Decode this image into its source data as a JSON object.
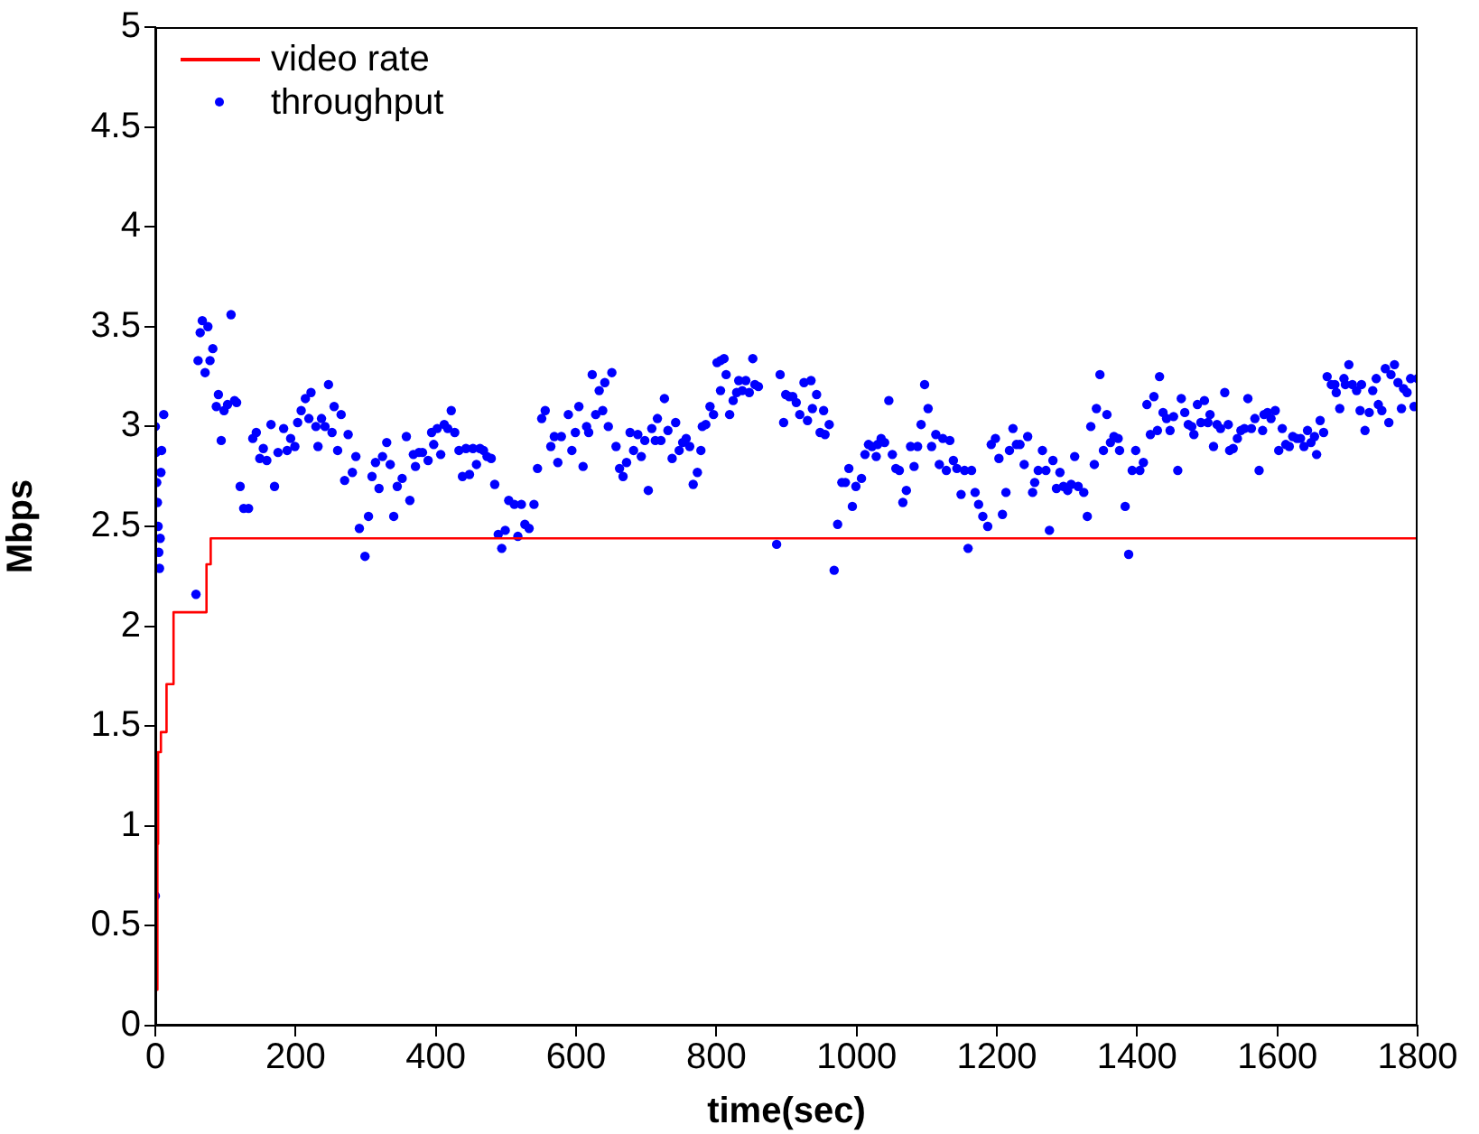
{
  "chart_data": {
    "type": "line",
    "xlabel": "time(sec)",
    "ylabel": "Mbps",
    "xlim": [
      0,
      1800
    ],
    "xticks": [
      0,
      200,
      400,
      600,
      800,
      1000,
      1200,
      1400,
      1600,
      1800
    ],
    "ylim": [
      0,
      5
    ],
    "yticks": [
      0,
      0.5,
      1,
      1.5,
      2,
      2.5,
      3,
      3.5,
      4,
      4.5,
      5
    ],
    "grid": false,
    "legend": "top left",
    "series": [
      {
        "name": "video rate",
        "type": "step",
        "color": "#ff0000",
        "marker": "none",
        "x": [
          2,
          3,
          4,
          8,
          16,
          26,
          73,
          79,
          1800
        ],
        "values": [
          0.18,
          0.91,
          1.37,
          1.47,
          1.71,
          2.07,
          2.31,
          2.44,
          2.44
        ]
      },
      {
        "name": "throughput",
        "type": "scatter",
        "color": "#0000ff",
        "marker": "circle",
        "x": [
          0,
          0,
          1,
          2,
          3,
          4,
          5,
          6,
          7,
          8,
          9,
          12,
          58,
          61,
          64,
          67,
          71,
          75,
          78,
          82,
          87,
          90,
          94,
          98,
          103,
          108,
          113,
          116,
          121,
          126,
          133,
          139,
          144,
          149,
          154,
          159,
          165,
          170,
          175,
          183,
          188,
          193,
          199,
          203,
          208,
          214,
          219,
          222,
          229,
          232,
          237,
          242,
          247,
          252,
          255,
          260,
          265,
          270,
          275,
          281,
          286,
          291,
          299,
          304,
          309,
          314,
          319,
          324,
          330,
          335,
          340,
          345,
          352,
          358,
          363,
          368,
          371,
          376,
          381,
          389,
          394,
          397,
          402,
          407,
          412,
          417,
          422,
          427,
          433,
          438,
          443,
          448,
          453,
          458,
          463,
          468,
          473,
          479,
          484,
          489,
          494,
          499,
          504,
          512,
          517,
          522,
          527,
          533,
          540,
          545,
          551,
          556,
          564,
          569,
          574,
          579,
          589,
          594,
          599,
          604,
          610,
          615,
          618,
          623,
          628,
          633,
          638,
          641,
          646,
          651,
          657,
          662,
          667,
          672,
          677,
          682,
          688,
          693,
          698,
          703,
          708,
          713,
          716,
          721,
          726,
          731,
          737,
          742,
          747,
          752,
          757,
          762,
          767,
          773,
          778,
          780,
          785,
          791,
          796,
          801,
          806,
          806,
          811,
          814,
          819,
          824,
          829,
          832,
          837,
          842,
          847,
          852,
          855,
          860,
          886,
          891,
          896,
          899,
          904,
          909,
          914,
          919,
          925,
          930,
          935,
          937,
          943,
          948,
          953,
          955,
          961,
          968,
          973,
          979,
          984,
          989,
          994,
          999,
          1007,
          1012,
          1017,
          1022,
          1028,
          1030,
          1035,
          1040,
          1046,
          1051,
          1056,
          1061,
          1066,
          1071,
          1077,
          1082,
          1087,
          1092,
          1097,
          1102,
          1107,
          1113,
          1118,
          1123,
          1128,
          1133,
          1138,
          1143,
          1149,
          1154,
          1159,
          1164,
          1169,
          1174,
          1180,
          1187,
          1192,
          1198,
          1203,
          1208,
          1213,
          1218,
          1223,
          1228,
          1233,
          1239,
          1244,
          1251,
          1254,
          1259,
          1265,
          1270,
          1275,
          1280,
          1285,
          1290,
          1295,
          1301,
          1306,
          1311,
          1316,
          1324,
          1329,
          1334,
          1339,
          1342,
          1347,
          1352,
          1357,
          1362,
          1367,
          1373,
          1375,
          1383,
          1388,
          1393,
          1398,
          1404,
          1409,
          1414,
          1419,
          1424,
          1429,
          1432,
          1437,
          1442,
          1447,
          1452,
          1458,
          1463,
          1468,
          1473,
          1478,
          1481,
          1486,
          1491,
          1496,
          1501,
          1504,
          1509,
          1514,
          1519,
          1525,
          1530,
          1532,
          1537,
          1543,
          1548,
          1553,
          1558,
          1563,
          1568,
          1574,
          1579,
          1581,
          1586,
          1591,
          1597,
          1602,
          1607,
          1612,
          1617,
          1622,
          1628,
          1633,
          1638,
          1643,
          1648,
          1653,
          1656,
          1661,
          1666,
          1671,
          1677,
          1682,
          1684,
          1689,
          1695,
          1697,
          1702,
          1707,
          1713,
          1718,
          1720,
          1725,
          1731,
          1736,
          1741,
          1744,
          1749,
          1754,
          1759,
          1762,
          1767,
          1772,
          1777,
          1780,
          1785,
          1790,
          1795,
          1800
        ],
        "values": [
          0.65,
          3.0,
          2.87,
          2.72,
          2.62,
          2.5,
          2.37,
          2.29,
          2.44,
          2.77,
          2.88,
          3.06,
          2.16,
          3.33,
          3.47,
          3.53,
          3.27,
          3.5,
          3.33,
          3.39,
          3.1,
          3.16,
          2.93,
          3.08,
          3.11,
          3.56,
          3.13,
          3.12,
          2.7,
          2.59,
          2.59,
          2.94,
          2.97,
          2.84,
          2.89,
          2.83,
          3.01,
          2.7,
          2.87,
          2.99,
          2.88,
          2.94,
          2.9,
          3.02,
          3.08,
          3.14,
          3.04,
          3.17,
          3.0,
          2.9,
          3.04,
          3.0,
          3.21,
          2.97,
          3.1,
          2.88,
          3.06,
          2.73,
          2.96,
          2.77,
          2.85,
          2.49,
          2.35,
          2.55,
          2.75,
          2.82,
          2.69,
          2.85,
          2.92,
          2.81,
          2.55,
          2.7,
          2.74,
          2.95,
          2.63,
          2.86,
          2.8,
          2.87,
          2.87,
          2.83,
          2.97,
          2.91,
          2.99,
          2.86,
          3.01,
          2.99,
          3.08,
          2.97,
          2.88,
          2.75,
          2.89,
          2.76,
          2.89,
          2.81,
          2.89,
          2.88,
          2.85,
          2.84,
          2.71,
          2.46,
          2.39,
          2.48,
          2.63,
          2.61,
          2.45,
          2.61,
          2.51,
          2.49,
          2.61,
          2.79,
          3.04,
          3.08,
          2.9,
          2.95,
          2.82,
          2.95,
          3.06,
          2.88,
          2.97,
          3.1,
          2.8,
          3.0,
          2.97,
          3.26,
          3.06,
          3.18,
          3.08,
          3.22,
          3.0,
          3.27,
          2.9,
          2.79,
          2.75,
          2.82,
          2.97,
          2.88,
          2.96,
          2.85,
          2.93,
          2.68,
          2.99,
          2.93,
          3.04,
          2.93,
          3.14,
          2.98,
          2.84,
          3.02,
          2.88,
          2.92,
          2.94,
          2.9,
          2.71,
          2.77,
          2.88,
          3.0,
          3.01,
          3.1,
          3.06,
          3.32,
          3.18,
          3.33,
          3.34,
          3.26,
          3.06,
          3.13,
          3.17,
          3.23,
          3.18,
          3.23,
          3.17,
          3.34,
          3.21,
          3.2,
          2.41,
          3.26,
          3.02,
          3.16,
          3.15,
          3.15,
          3.12,
          3.06,
          3.22,
          3.03,
          3.23,
          3.09,
          3.16,
          2.97,
          3.08,
          2.96,
          3.01,
          2.28,
          2.51,
          2.72,
          2.72,
          2.79,
          2.6,
          2.7,
          2.74,
          2.86,
          2.91,
          2.9,
          2.85,
          2.91,
          2.94,
          2.92,
          3.13,
          2.86,
          2.79,
          2.78,
          2.62,
          2.68,
          2.9,
          2.8,
          2.9,
          3.01,
          3.21,
          3.09,
          2.9,
          2.96,
          2.81,
          2.94,
          2.78,
          2.93,
          2.83,
          2.79,
          2.66,
          2.78,
          2.39,
          2.78,
          2.67,
          2.61,
          2.55,
          2.5,
          2.91,
          2.94,
          2.84,
          2.56,
          2.67,
          2.88,
          2.99,
          2.91,
          2.91,
          2.81,
          2.95,
          2.67,
          2.72,
          2.78,
          2.88,
          2.78,
          2.48,
          2.83,
          2.69,
          2.77,
          2.7,
          2.68,
          2.71,
          2.85,
          2.7,
          2.67,
          2.55,
          3.0,
          2.81,
          3.09,
          3.26,
          2.88,
          3.06,
          2.92,
          2.95,
          2.94,
          2.88,
          2.6,
          2.36,
          2.78,
          2.88,
          2.78,
          2.82,
          3.11,
          2.96,
          3.15,
          2.98,
          3.25,
          3.07,
          3.04,
          2.98,
          3.05,
          2.78,
          3.14,
          3.07,
          3.01,
          3.0,
          2.96,
          3.11,
          3.02,
          3.13,
          3.02,
          3.06,
          2.9,
          3.01,
          2.99,
          3.17,
          3.01,
          2.88,
          2.89,
          2.94,
          2.98,
          2.99,
          3.14,
          2.99,
          3.04,
          2.78,
          2.98,
          3.06,
          3.07,
          3.04,
          3.08,
          2.88,
          2.99,
          2.91,
          2.9,
          2.95,
          2.94,
          2.94,
          2.9,
          2.98,
          2.92,
          2.95,
          2.86,
          3.03,
          2.97,
          3.25,
          3.21,
          3.21,
          3.17,
          3.09,
          3.24,
          3.21,
          3.31,
          3.21,
          3.18,
          3.08,
          3.21,
          2.98,
          3.07,
          3.18,
          3.24,
          3.11,
          3.08,
          3.29,
          3.02,
          3.26,
          3.31,
          3.22,
          3.09,
          3.19,
          3.17,
          3.24,
          3.1,
          3.24
        ]
      }
    ]
  }
}
